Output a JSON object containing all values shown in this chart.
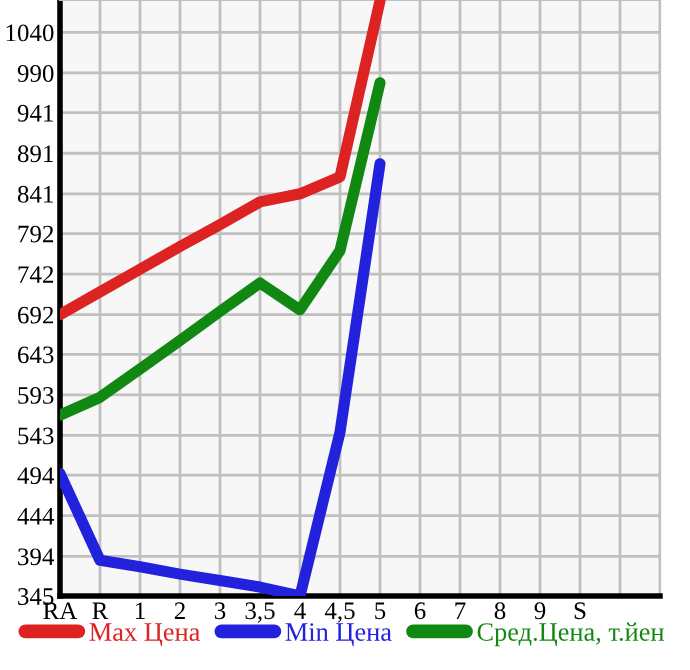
{
  "chart_data": {
    "type": "line",
    "categories": [
      "RA",
      "R",
      "1",
      "2",
      "3",
      "3,5",
      "4",
      "4,5",
      "5",
      "6",
      "7",
      "8",
      "9",
      "S",
      null,
      null
    ],
    "series": [
      {
        "name": "Max Цена",
        "color": "#dd2222",
        "values": [
          692,
          720,
          748,
          776,
          803,
          831,
          841,
          862,
          1079,
          null,
          null,
          null,
          null,
          null,
          null,
          null
        ]
      },
      {
        "name": "Min Цена",
        "color": "#2222dd",
        "values": [
          496,
          389,
          381,
          372,
          364,
          356,
          345,
          547,
          878,
          null,
          null,
          null,
          null,
          null,
          null,
          null
        ]
      },
      {
        "name": "Сред.Цена, т.йен",
        "color": "#118811",
        "values": [
          568,
          590,
          625,
          660,
          696,
          731,
          698,
          771,
          978,
          null,
          null,
          null,
          null,
          null,
          null,
          null
        ]
      }
    ],
    "ylim": [
      345,
      1080
    ],
    "yticks": [
      345,
      394,
      444,
      494,
      543,
      593,
      643,
      692,
      742,
      792,
      841,
      891,
      941,
      990,
      1040
    ],
    "grid": true,
    "legend": "bottom",
    "marker": "none",
    "line_style": "solid"
  }
}
